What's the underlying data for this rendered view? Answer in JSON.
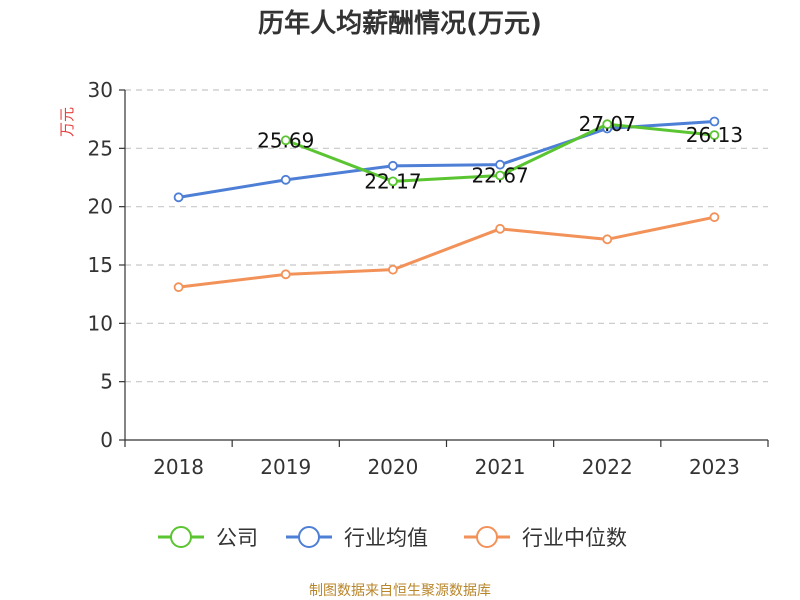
{
  "chart_data": {
    "type": "line",
    "title": "历年人均薪酬情况(万元)",
    "ylabel": "万元",
    "xlabel": "",
    "categories": [
      "2018",
      "2019",
      "2020",
      "2021",
      "2022",
      "2023"
    ],
    "ylim": [
      0,
      30
    ],
    "yticks": [
      0,
      5,
      10,
      15,
      20,
      25,
      30
    ],
    "grid": true,
    "legend_position": "bottom",
    "series": [
      {
        "name": "公司",
        "color": "#5ac531",
        "values": [
          null,
          25.69,
          22.17,
          22.67,
          27.07,
          26.13
        ],
        "labels": [
          "",
          "25.69",
          "22.17",
          "22.67",
          "27.07",
          "26.13"
        ]
      },
      {
        "name": "行业均值",
        "color": "#4e7fd6",
        "values": [
          20.8,
          22.3,
          23.5,
          23.6,
          26.7,
          27.3
        ],
        "labels": [
          "",
          "",
          "",
          "",
          "",
          ""
        ]
      },
      {
        "name": "行业中位数",
        "color": "#f29259",
        "values": [
          13.1,
          14.2,
          14.6,
          18.1,
          17.2,
          19.1
        ],
        "labels": [
          "",
          "",
          "",
          "",
          "",
          ""
        ]
      }
    ]
  },
  "source": "制图数据来自恒生聚源数据库"
}
